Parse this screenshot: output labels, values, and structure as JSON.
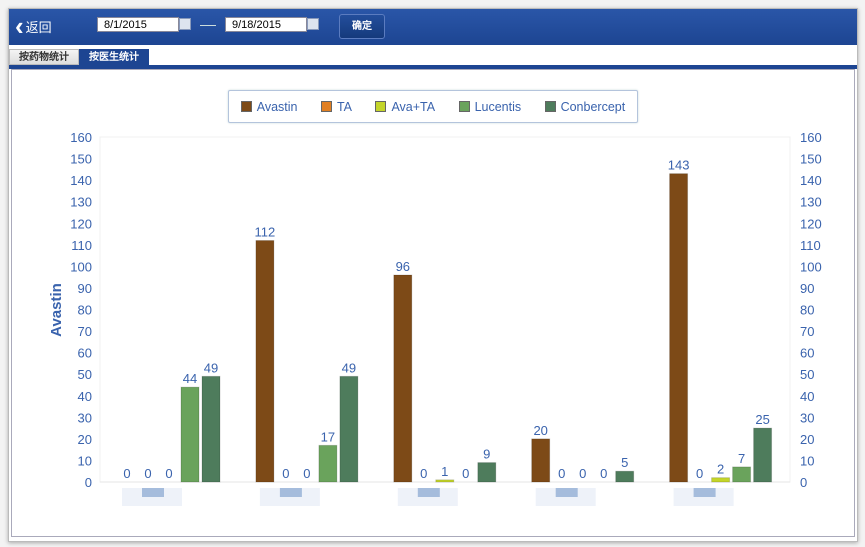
{
  "header": {
    "back_label": "返回",
    "start_date": "8/1/2015",
    "end_date": "9/18/2015",
    "confirm_label": "确定"
  },
  "tabs": [
    {
      "label": "按药物统计",
      "active": false
    },
    {
      "label": "按医生统计",
      "active": true
    }
  ],
  "chart_data": {
    "type": "bar",
    "title": "",
    "ylabel": "Avastin",
    "xlabel": "",
    "ylim": [
      0,
      160
    ],
    "yticks": [
      0,
      10,
      20,
      30,
      40,
      50,
      60,
      70,
      80,
      90,
      100,
      110,
      120,
      130,
      140,
      150,
      160
    ],
    "categories": [
      "",
      "",
      "",
      "",
      ""
    ],
    "legend_position": "top-center",
    "series": [
      {
        "name": "Avastin",
        "color": "#7d4a17",
        "values": [
          0,
          112,
          96,
          20,
          143
        ]
      },
      {
        "name": "TA",
        "color": "#e07f22",
        "values": [
          0,
          0,
          0,
          0,
          0
        ]
      },
      {
        "name": "Ava+TA",
        "color": "#c4d52a",
        "values": [
          0,
          0,
          1,
          0,
          2
        ]
      },
      {
        "name": "Lucentis",
        "color": "#6aa35c",
        "values": [
          44,
          17,
          0,
          0,
          7
        ]
      },
      {
        "name": "Conbercept",
        "color": "#4e7c5c",
        "values": [
          49,
          49,
          9,
          5,
          25
        ]
      }
    ]
  }
}
